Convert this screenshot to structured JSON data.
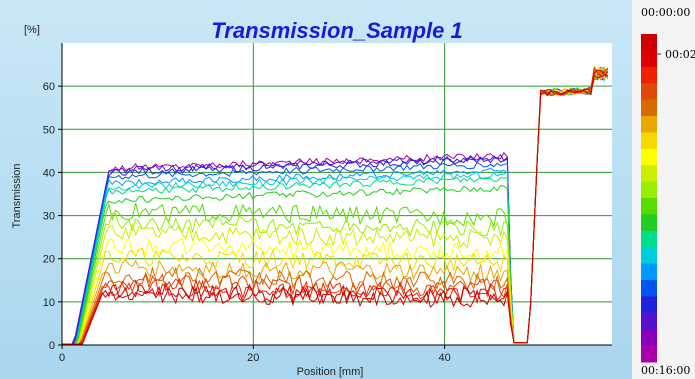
{
  "chart_data": {
    "type": "line",
    "title": "Transmission_Sample 1",
    "unit_label": "[%]",
    "xlabel": "Position [mm]",
    "ylabel": "Transmission",
    "xlim": [
      0,
      57.5
    ],
    "ylim": [
      0,
      70
    ],
    "x_ticks": [
      0,
      20,
      40
    ],
    "y_ticks": [
      0,
      10,
      20,
      30,
      40,
      50,
      60
    ],
    "grid": true,
    "legend": "colorbar-right",
    "colorbar": {
      "top_label": "00:00:00",
      "mid_label": "00:02",
      "bottom_label": "00:16:00",
      "colors": [
        "#cc0000",
        "#dd0000",
        "#ee2200",
        "#e04a00",
        "#d86a00",
        "#e8a800",
        "#f5d800",
        "#ffff00",
        "#ccee00",
        "#99ee00",
        "#55dd00",
        "#22cc22",
        "#00dd88",
        "#00ccdd",
        "#0099ff",
        "#0055ee",
        "#2222dd",
        "#5511cc",
        "#8800bb",
        "#aa00aa"
      ]
    },
    "colors": {
      "title": "#1a1adc",
      "header_bg": "#b8dff2",
      "grid": "#2e9a2e",
      "plot_bg": "#ffffff"
    },
    "series": [
      {
        "color": "#aa00aa",
        "plateau": 41.0,
        "right_step": 58.5
      },
      {
        "color": "#5511cc",
        "plateau": 40.5,
        "right_step": 58.7
      },
      {
        "color": "#2222dd",
        "plateau": 40.0,
        "right_step": 58.5
      },
      {
        "color": "#0055ee",
        "plateau": 39.0,
        "right_step": 58.3
      },
      {
        "color": "#0099ff",
        "plateau": 37.5,
        "right_step": 58.6
      },
      {
        "color": "#00ccdd",
        "plateau": 36.5,
        "right_step": 58.2
      },
      {
        "color": "#00dd88",
        "plateau": 35.5,
        "right_step": 58.5
      },
      {
        "color": "#22cc22",
        "plateau": 33.5,
        "right_step": 58.4
      },
      {
        "color": "#55dd00",
        "plateau": 31.0,
        "right_step": 58.8
      },
      {
        "color": "#99ee00",
        "plateau": 28.5,
        "right_step": 58.3
      },
      {
        "color": "#ccee00",
        "plateau": 26.0,
        "right_step": 58.6
      },
      {
        "color": "#ffff00",
        "plateau": 23.0,
        "right_step": 58.5
      },
      {
        "color": "#f5d800",
        "plateau": 20.5,
        "right_step": 58.1
      },
      {
        "color": "#e8a800",
        "plateau": 18.0,
        "right_step": 58.7
      },
      {
        "color": "#d86a00",
        "plateau": 16.0,
        "right_step": 58.4
      },
      {
        "color": "#e04a00",
        "plateau": 14.5,
        "right_step": 58.2
      },
      {
        "color": "#ee2200",
        "plateau": 13.5,
        "right_step": 58.6
      },
      {
        "color": "#dd0000",
        "plateau": 12.5,
        "right_step": 58.3
      },
      {
        "color": "#cc0000",
        "plateau": 12.0,
        "right_step": 58.5
      }
    ]
  }
}
